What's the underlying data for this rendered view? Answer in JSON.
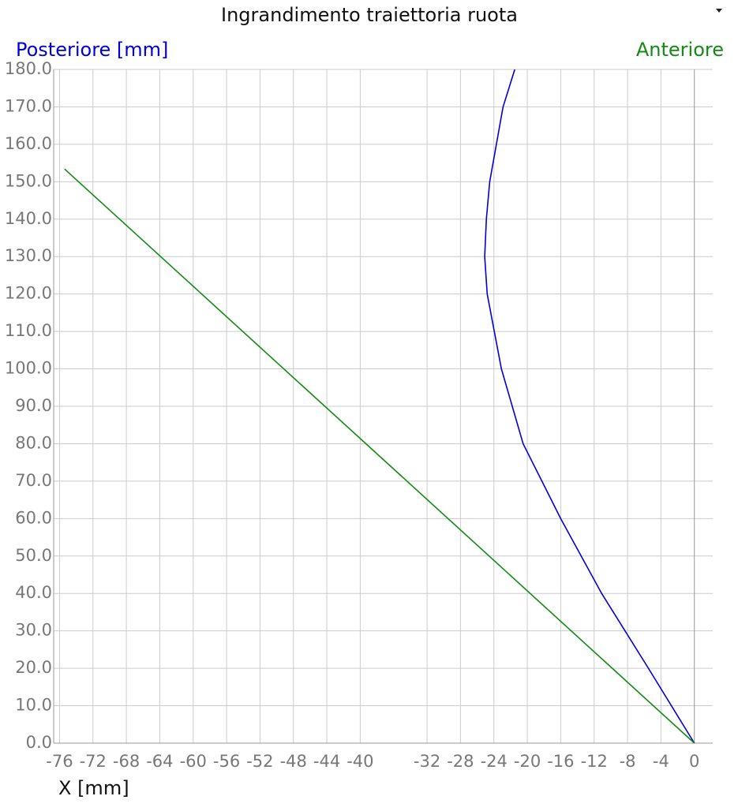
{
  "chart_data": {
    "type": "line",
    "title": "Ingrandimento traiettoria ruota",
    "x_label": "X [mm]",
    "xlim": [
      -76.7,
      2.2
    ],
    "ylim": [
      0,
      180
    ],
    "xticks": [
      -76,
      -72,
      -68,
      -64,
      -60,
      -56,
      -52,
      -48,
      -44,
      -40,
      -32,
      -28,
      -24,
      -20,
      -16,
      -12,
      -8,
      -4,
      0
    ],
    "yticks": [
      {
        "value": 0,
        "label": "0.0"
      },
      {
        "value": 10,
        "label": "10.0"
      },
      {
        "value": 20,
        "label": "20.0"
      },
      {
        "value": 30,
        "label": "30.0"
      },
      {
        "value": 40,
        "label": "40.0"
      },
      {
        "value": 50,
        "label": "50.0"
      },
      {
        "value": 60,
        "label": "60.0"
      },
      {
        "value": 70,
        "label": "70.0"
      },
      {
        "value": 80,
        "label": "80.0"
      },
      {
        "value": 90,
        "label": "90.0"
      },
      {
        "value": 100,
        "label": "100.0"
      },
      {
        "value": 110,
        "label": "110.0"
      },
      {
        "value": 120,
        "label": "120.0"
      },
      {
        "value": 130,
        "label": "130.0"
      },
      {
        "value": 140,
        "label": "140.0"
      },
      {
        "value": 150,
        "label": "150.0"
      },
      {
        "value": 160,
        "label": "160.0"
      },
      {
        "value": 170,
        "label": "170.0"
      },
      {
        "value": 180,
        "label": "180.0"
      }
    ],
    "grid": true,
    "series": [
      {
        "name": "Posteriore [mm]",
        "color": "#0000dd",
        "legend": "left",
        "x": [
          0,
          -5.5,
          -11.1,
          -16,
          -20.5,
          -23.1,
          -24.8,
          -25.1,
          -24.9,
          -24.5,
          -23.7,
          -22.9,
          -21.5
        ],
        "values": [
          0,
          20,
          40,
          60,
          80,
          100,
          120,
          130,
          140,
          150,
          160,
          170,
          180
        ]
      },
      {
        "name": "Anteriore",
        "color": "#138a13",
        "legend": "right",
        "x": [
          0,
          -75.4
        ],
        "values": [
          0,
          153.4
        ]
      }
    ]
  }
}
